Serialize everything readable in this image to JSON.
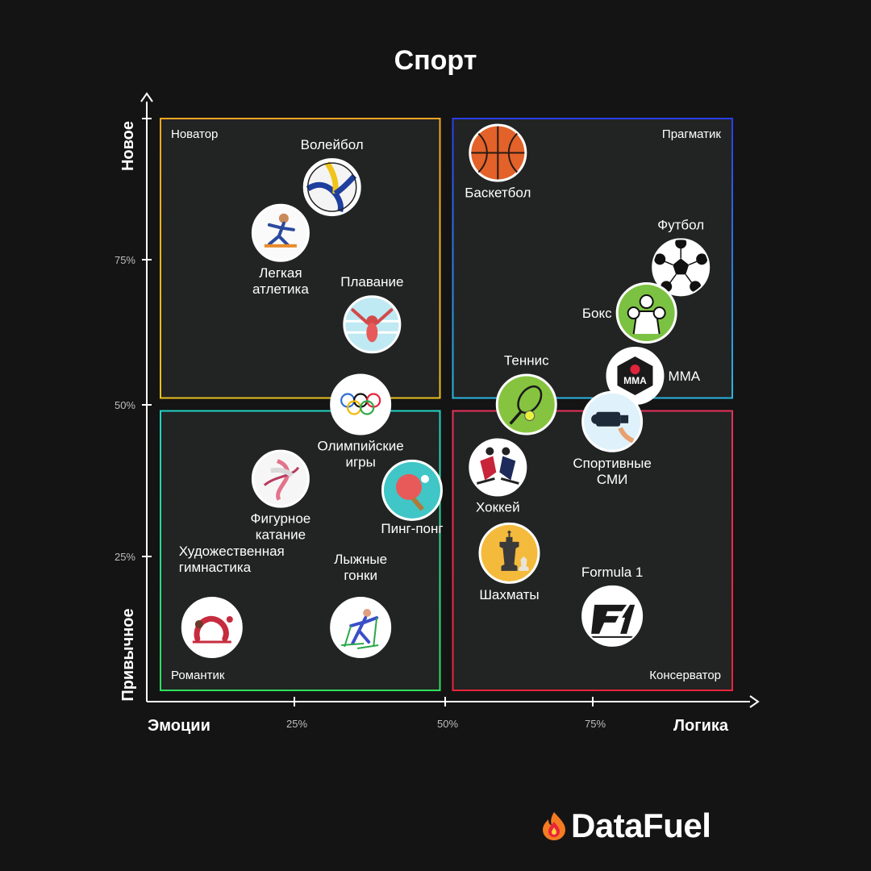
{
  "chart_data": {
    "type": "scatter",
    "title": "Спорт",
    "xlabel_left": "Эмоции",
    "xlabel_right": "Логика",
    "ylabel_bottom": "Привычное",
    "ylabel_top": "Новое",
    "xlim": [
      0,
      100
    ],
    "ylim": [
      0,
      100
    ],
    "x_ticks": [
      {
        "value": 25,
        "label": "25%"
      },
      {
        "value": 50,
        "label": "50%"
      },
      {
        "value": 75,
        "label": "75%"
      }
    ],
    "y_ticks": [
      {
        "value": 25,
        "label": "25%"
      },
      {
        "value": 50,
        "label": "50%"
      },
      {
        "value": 75,
        "label": "75%"
      }
    ],
    "quadrants": [
      {
        "name": "Новатор",
        "x": [
          0,
          50
        ],
        "y": [
          50,
          100
        ],
        "color_top": "#f5a623",
        "color_bottom": "#e8c020",
        "label_corner": "top-left"
      },
      {
        "name": "Прагматик",
        "x": [
          50,
          100
        ],
        "y": [
          50,
          100
        ],
        "color_top": "#2a3ee8",
        "color_bottom": "#29b6e0",
        "label_corner": "top-right"
      },
      {
        "name": "Романтик",
        "x": [
          0,
          50
        ],
        "y": [
          0,
          50
        ],
        "color_top": "#22d3c5",
        "color_bottom": "#2ee05c",
        "label_corner": "bottom-left"
      },
      {
        "name": "Консерватор",
        "x": [
          50,
          100
        ],
        "y": [
          0,
          50
        ],
        "color_top": "#e8305a",
        "color_bottom": "#e8243c",
        "label_corner": "bottom-right"
      }
    ],
    "points": [
      {
        "name": "Волейбол",
        "icon": "volleyball-icon",
        "x": 30,
        "y": 88,
        "label_pos": "above"
      },
      {
        "name": "Легкая атлетика",
        "icon": "athletics-icon",
        "x": 21,
        "y": 80,
        "label_pos": "below"
      },
      {
        "name": "Плавание",
        "icon": "swimming-icon",
        "x": 37,
        "y": 64,
        "label_pos": "above"
      },
      {
        "name": "Олимпийские игры",
        "icon": "olympic-rings-icon",
        "x": 35,
        "y": 50,
        "label_pos": "below"
      },
      {
        "name": "Фигурное катание",
        "icon": "figure-skating-icon",
        "x": 21,
        "y": 37,
        "label_pos": "below"
      },
      {
        "name": "Пинг-понг",
        "icon": "ping-pong-icon",
        "x": 44,
        "y": 35,
        "label_pos": "below"
      },
      {
        "name": "Художественная гимнастика",
        "icon": "gymnastics-icon",
        "x": 9,
        "y": 11,
        "label_pos": "above"
      },
      {
        "name": "Лыжные гонки",
        "icon": "skiing-icon",
        "x": 35,
        "y": 11,
        "label_pos": "above"
      },
      {
        "name": "Баскетбол",
        "icon": "basketball-icon",
        "x": 59,
        "y": 94,
        "label_pos": "below"
      },
      {
        "name": "Футбол",
        "icon": "football-icon",
        "x": 91,
        "y": 74,
        "label_pos": "above"
      },
      {
        "name": "Бокс",
        "icon": "boxing-icon",
        "x": 85,
        "y": 66,
        "label_pos": "left"
      },
      {
        "name": "MMA",
        "icon": "mma-icon",
        "x": 83,
        "y": 55,
        "label_pos": "right"
      },
      {
        "name": "Теннис",
        "icon": "tennis-icon",
        "x": 64,
        "y": 50,
        "label_pos": "above"
      },
      {
        "name": "Спортивные СМИ",
        "icon": "camera-icon",
        "x": 79,
        "y": 47,
        "label_pos": "below"
      },
      {
        "name": "Хоккей",
        "icon": "hockey-icon",
        "x": 59,
        "y": 39,
        "label_pos": "below"
      },
      {
        "name": "Шахматы",
        "icon": "chess-icon",
        "x": 61,
        "y": 24,
        "label_pos": "below"
      },
      {
        "name": "Formula 1",
        "icon": "formula1-icon",
        "x": 79,
        "y": 13,
        "label_pos": "above"
      }
    ]
  },
  "brand": {
    "name": "DataFuel",
    "icon": "flame-logo-icon"
  }
}
